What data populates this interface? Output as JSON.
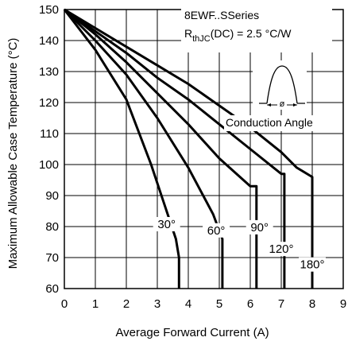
{
  "chart_data": {
    "type": "line",
    "title": "",
    "xlabel": "Average Forward Current (A)",
    "ylabel": "Maximum Allowable Case Temperature (°C)",
    "xlim": [
      0,
      9
    ],
    "ylim": [
      60,
      150
    ],
    "x_ticks": [
      0,
      1,
      2,
      3,
      4,
      5,
      6,
      7,
      8,
      9
    ],
    "y_ticks": [
      60,
      70,
      80,
      90,
      100,
      110,
      120,
      130,
      140,
      150
    ],
    "grid": true,
    "annotations": {
      "series_name": "8EWF..SSeries",
      "rth_main": "R",
      "rth_sub": "thJC",
      "rth_rest": "(DC) = 2.5 °C/W",
      "conduction_angle": "Conduction Angle",
      "phi_symbol": "ø"
    },
    "series": [
      {
        "label": "30°",
        "points": [
          [
            0,
            150
          ],
          [
            1,
            137
          ],
          [
            2,
            121
          ],
          [
            2.8,
            100
          ],
          [
            3.2,
            88
          ],
          [
            3.6,
            76
          ],
          [
            3.7,
            70
          ],
          [
            3.7,
            60
          ]
        ]
      },
      {
        "label": "60°",
        "points": [
          [
            0,
            150
          ],
          [
            1,
            140
          ],
          [
            2,
            129
          ],
          [
            3,
            115
          ],
          [
            4,
            99
          ],
          [
            4.8,
            84
          ],
          [
            5.1,
            76
          ],
          [
            5.1,
            60
          ]
        ]
      },
      {
        "label": "90°",
        "points": [
          [
            0,
            150
          ],
          [
            1,
            142
          ],
          [
            2,
            133
          ],
          [
            3,
            123
          ],
          [
            4,
            113
          ],
          [
            5,
            102
          ],
          [
            6,
            93
          ],
          [
            6.2,
            93
          ],
          [
            6.2,
            60
          ]
        ]
      },
      {
        "label": "120°",
        "points": [
          [
            0,
            150
          ],
          [
            1,
            143
          ],
          [
            2,
            136
          ],
          [
            3,
            128
          ],
          [
            4,
            121
          ],
          [
            5,
            113
          ],
          [
            6,
            105
          ],
          [
            7,
            97
          ],
          [
            7.1,
            97
          ],
          [
            7.1,
            60
          ]
        ]
      },
      {
        "label": "180°",
        "points": [
          [
            0,
            150
          ],
          [
            1,
            144
          ],
          [
            2,
            138
          ],
          [
            3,
            132
          ],
          [
            4,
            126
          ],
          [
            5,
            119
          ],
          [
            6,
            112
          ],
          [
            7,
            104
          ],
          [
            7.5,
            99
          ],
          [
            8,
            96
          ],
          [
            8,
            60
          ]
        ]
      }
    ]
  }
}
